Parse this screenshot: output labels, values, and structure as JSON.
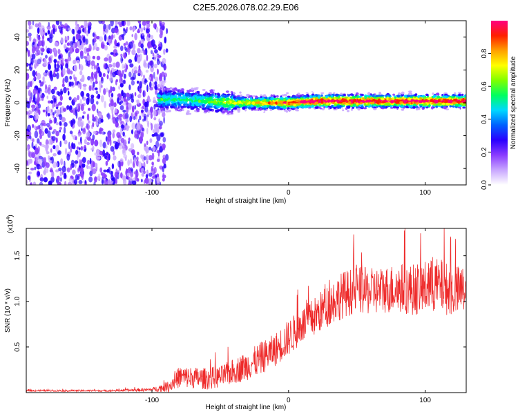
{
  "title": "C2E5.2026.078.02.29.E06",
  "chart_data": [
    {
      "type": "heatmap",
      "name": "spectrogram",
      "xlabel": "Height of straight line (km)",
      "ylabel": "Frequency (Hz)",
      "xlim": [
        -192,
        130
      ],
      "ylim": [
        -50,
        50
      ],
      "xticks": [
        {
          "value": -100,
          "label": "-100"
        },
        {
          "value": 0,
          "label": "0"
        },
        {
          "value": 100,
          "label": "100"
        }
      ],
      "yticks": [
        {
          "value": 40,
          "label": "40"
        },
        {
          "value": 20,
          "label": "20"
        },
        {
          "value": 0,
          "label": "0"
        },
        {
          "value": -20,
          "label": "-20"
        },
        {
          "value": -40,
          "label": "-40"
        }
      ],
      "noise_region_end_km": -95,
      "ridge": {
        "x": [
          -95,
          -80,
          -60,
          -40,
          -20,
          -5,
          0,
          20,
          50,
          80,
          100,
          130
        ],
        "freq": [
          2,
          2,
          1,
          0,
          0,
          0,
          0,
          1,
          1,
          1,
          1,
          1
        ]
      },
      "colorbar": {
        "label": "Normalized spectral amplitude",
        "range": [
          0,
          1
        ],
        "ticks": [
          {
            "value": 0.0,
            "label": "0.0"
          },
          {
            "value": 0.2,
            "label": "0.2"
          },
          {
            "value": 0.4,
            "label": "0.4"
          },
          {
            "value": 0.6,
            "label": "0.6"
          },
          {
            "value": 0.8,
            "label": "0.8"
          }
        ],
        "colors": [
          "#ffffff",
          "#c8a6ff",
          "#8a3cff",
          "#2a00ff",
          "#0060ff",
          "#00d8ff",
          "#00ff60",
          "#80ff00",
          "#ffff00",
          "#ffa000",
          "#ff2000",
          "#ff0080"
        ]
      }
    },
    {
      "type": "line",
      "name": "snr",
      "xlabel": "Height of straight line (km)",
      "ylabel": "SNR (10 * v/v)",
      "y_multiplier": "(x10",
      "y_multiplier_exp": "4",
      "y_multiplier_close": ")",
      "xlim": [
        -192,
        130
      ],
      "ylim": [
        0,
        1.8
      ],
      "xticks": [
        {
          "value": -100,
          "label": "-100"
        },
        {
          "value": 0,
          "label": "0"
        },
        {
          "value": 100,
          "label": "100"
        }
      ],
      "yticks": [
        {
          "value": 0.5,
          "label": "0.5"
        },
        {
          "value": 1.0,
          "label": "1.0"
        },
        {
          "value": 1.5,
          "label": "1.5"
        }
      ],
      "series_color": "#ee2a2a",
      "envelope": {
        "x": [
          -192,
          -130,
          -100,
          -88,
          -80,
          -70,
          -60,
          -50,
          -40,
          -30,
          -20,
          -10,
          0,
          10,
          20,
          30,
          40,
          50,
          60,
          70,
          80,
          90,
          100,
          110,
          120,
          130
        ],
        "mean": [
          0.02,
          0.02,
          0.03,
          0.06,
          0.16,
          0.15,
          0.14,
          0.16,
          0.22,
          0.28,
          0.36,
          0.45,
          0.58,
          0.72,
          0.82,
          0.95,
          1.05,
          1.1,
          1.08,
          1.1,
          1.12,
          1.1,
          1.12,
          1.15,
          1.08,
          1.1
        ],
        "noise": [
          0.01,
          0.01,
          0.02,
          0.06,
          0.12,
          0.12,
          0.12,
          0.12,
          0.14,
          0.16,
          0.18,
          0.18,
          0.2,
          0.2,
          0.22,
          0.24,
          0.26,
          0.26,
          0.26,
          0.26,
          0.28,
          0.28,
          0.3,
          0.3,
          0.28,
          0.28
        ]
      }
    }
  ]
}
